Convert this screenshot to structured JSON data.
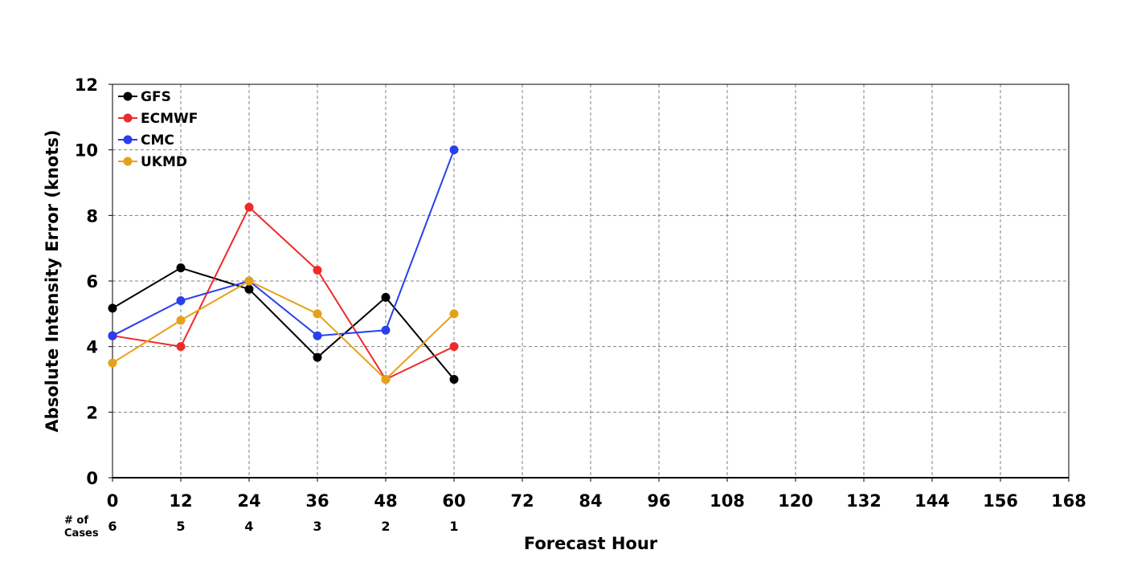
{
  "chart_data": {
    "type": "line",
    "xlabel": "Forecast Hour",
    "ylabel": "Absolute Intensity Error (knots)",
    "xlim": [
      0,
      168
    ],
    "ylim": [
      0,
      12
    ],
    "x_ticks": [
      0,
      12,
      24,
      36,
      48,
      60,
      72,
      84,
      96,
      108,
      120,
      132,
      144,
      156,
      168
    ],
    "y_ticks": [
      0,
      2,
      4,
      6,
      8,
      10,
      12
    ],
    "grid": true,
    "legend_position": "top-left",
    "cases_label": "# of Cases",
    "cases_label_lines": [
      "# of",
      "Cases"
    ],
    "cases_x": [
      0,
      12,
      24,
      36,
      48,
      60
    ],
    "cases": [
      "6",
      "5",
      "4",
      "3",
      "2",
      "1"
    ],
    "series": [
      {
        "name": "GFS",
        "color": "#000000",
        "x": [
          0,
          12,
          24,
          36,
          48,
          60
        ],
        "values": [
          5.17,
          6.4,
          5.75,
          3.67,
          5.5,
          3.0
        ]
      },
      {
        "name": "ECMWF",
        "color": "#ee2a2a",
        "x": [
          0,
          12,
          24,
          36,
          48,
          60
        ],
        "values": [
          4.33,
          4.0,
          8.25,
          6.33,
          3.0,
          4.0
        ]
      },
      {
        "name": "CMC",
        "color": "#2a3eee",
        "x": [
          0,
          12,
          24,
          36,
          48,
          60
        ],
        "values": [
          4.33,
          5.4,
          6.0,
          4.33,
          4.5,
          10.0
        ]
      },
      {
        "name": "UKMD",
        "color": "#e6a11a",
        "x": [
          0,
          12,
          24,
          36,
          48,
          60
        ],
        "values": [
          3.5,
          4.8,
          6.0,
          5.0,
          3.0,
          5.0
        ]
      }
    ]
  }
}
